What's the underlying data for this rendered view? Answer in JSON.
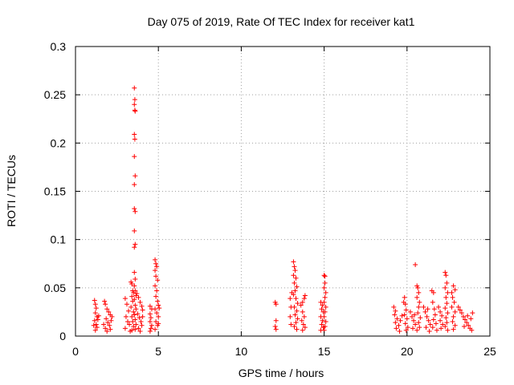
{
  "chart_data": {
    "type": "scatter",
    "title": "Day 075 of 2019, Rate Of TEC Index for receiver kat1",
    "xlabel": "GPS time / hours",
    "ylabel": "ROTI / TECUs",
    "xlim": [
      0,
      25
    ],
    "ylim": [
      0,
      0.3
    ],
    "x_ticks": [
      0,
      5,
      10,
      15,
      20,
      25
    ],
    "x_tick_labels": [
      "0",
      "5",
      "10",
      "15",
      "20",
      "25"
    ],
    "y_ticks": [
      0,
      0.05,
      0.1,
      0.15,
      0.2,
      0.25,
      0.3
    ],
    "y_tick_labels": [
      "0",
      "0.05",
      "0.1",
      "0.15",
      "0.2",
      "0.25",
      "0.3"
    ],
    "grid": true,
    "marker": "plus",
    "color": "#ff0000",
    "series": [
      {
        "name": "ROTI",
        "points": [
          [
            1.15,
            0.037
          ],
          [
            1.2,
            0.033
          ],
          [
            1.25,
            0.029
          ],
          [
            1.2,
            0.024
          ],
          [
            1.3,
            0.02
          ],
          [
            1.15,
            0.016
          ],
          [
            1.25,
            0.012
          ],
          [
            1.3,
            0.009
          ],
          [
            1.2,
            0.006
          ],
          [
            1.35,
            0.017
          ],
          [
            1.1,
            0.011
          ],
          [
            1.4,
            0.021
          ],
          [
            1.75,
            0.036
          ],
          [
            1.8,
            0.033
          ],
          [
            1.9,
            0.028
          ],
          [
            2.0,
            0.025
          ],
          [
            2.1,
            0.022
          ],
          [
            1.85,
            0.018
          ],
          [
            1.95,
            0.014
          ],
          [
            2.05,
            0.011
          ],
          [
            1.8,
            0.008
          ],
          [
            2.15,
            0.016
          ],
          [
            1.7,
            0.012
          ],
          [
            2.2,
            0.02
          ],
          [
            1.9,
            0.005
          ],
          [
            2.1,
            0.007
          ],
          [
            3.0,
            0.039
          ],
          [
            3.1,
            0.033
          ],
          [
            3.2,
            0.026
          ],
          [
            3.05,
            0.02
          ],
          [
            3.15,
            0.015
          ],
          [
            3.25,
            0.012
          ],
          [
            3.0,
            0.008
          ],
          [
            3.3,
            0.005
          ],
          [
            3.35,
            0.056
          ],
          [
            3.4,
            0.054
          ],
          [
            3.45,
            0.047
          ],
          [
            3.5,
            0.045
          ],
          [
            3.4,
            0.041
          ],
          [
            3.45,
            0.036
          ],
          [
            3.35,
            0.03
          ],
          [
            3.5,
            0.025
          ],
          [
            3.4,
            0.02
          ],
          [
            3.45,
            0.015
          ],
          [
            3.5,
            0.01
          ],
          [
            3.4,
            0.006
          ],
          [
            3.55,
            0.257
          ],
          [
            3.58,
            0.245
          ],
          [
            3.55,
            0.24
          ],
          [
            3.58,
            0.234
          ],
          [
            3.6,
            0.233
          ],
          [
            3.55,
            0.209
          ],
          [
            3.58,
            0.204
          ],
          [
            3.55,
            0.186
          ],
          [
            3.6,
            0.166
          ],
          [
            3.55,
            0.157
          ],
          [
            3.55,
            0.132
          ],
          [
            3.6,
            0.129
          ],
          [
            3.55,
            0.109
          ],
          [
            3.6,
            0.095
          ],
          [
            3.55,
            0.092
          ],
          [
            3.55,
            0.066
          ],
          [
            3.6,
            0.059
          ],
          [
            3.55,
            0.052
          ],
          [
            3.6,
            0.047
          ],
          [
            3.65,
            0.042
          ],
          [
            3.55,
            0.038
          ],
          [
            3.6,
            0.032
          ],
          [
            3.65,
            0.028
          ],
          [
            3.55,
            0.022
          ],
          [
            3.6,
            0.017
          ],
          [
            3.65,
            0.012
          ],
          [
            3.6,
            0.007
          ],
          [
            3.7,
            0.044
          ],
          [
            3.8,
            0.04
          ],
          [
            3.9,
            0.035
          ],
          [
            4.0,
            0.031
          ],
          [
            4.05,
            0.027
          ],
          [
            3.75,
            0.023
          ],
          [
            3.85,
            0.019
          ],
          [
            3.95,
            0.015
          ],
          [
            4.0,
            0.011
          ],
          [
            3.8,
            0.008
          ],
          [
            3.9,
            0.005
          ],
          [
            4.05,
            0.02
          ],
          [
            4.5,
            0.031
          ],
          [
            4.6,
            0.028
          ],
          [
            4.5,
            0.023
          ],
          [
            4.55,
            0.019
          ],
          [
            4.5,
            0.015
          ],
          [
            4.6,
            0.011
          ],
          [
            4.55,
            0.008
          ],
          [
            4.5,
            0.005
          ],
          [
            4.8,
            0.079
          ],
          [
            4.85,
            0.075
          ],
          [
            4.9,
            0.072
          ],
          [
            4.8,
            0.068
          ],
          [
            4.85,
            0.062
          ],
          [
            4.95,
            0.058
          ],
          [
            4.8,
            0.052
          ],
          [
            4.9,
            0.047
          ],
          [
            4.85,
            0.041
          ],
          [
            4.95,
            0.036
          ],
          [
            5.0,
            0.032
          ],
          [
            4.8,
            0.028
          ],
          [
            4.9,
            0.024
          ],
          [
            5.0,
            0.02
          ],
          [
            4.85,
            0.015
          ],
          [
            4.95,
            0.011
          ],
          [
            4.8,
            0.007
          ],
          [
            5.05,
            0.029
          ],
          [
            5.0,
            0.013
          ],
          [
            12.05,
            0.035
          ],
          [
            12.1,
            0.033
          ],
          [
            12.1,
            0.016
          ],
          [
            12.05,
            0.01
          ],
          [
            12.1,
            0.007
          ],
          [
            12.95,
            0.039
          ],
          [
            13.0,
            0.03
          ],
          [
            12.95,
            0.02
          ],
          [
            13.0,
            0.012
          ],
          [
            13.05,
            0.045
          ],
          [
            13.15,
            0.077
          ],
          [
            13.2,
            0.072
          ],
          [
            13.25,
            0.068
          ],
          [
            13.15,
            0.063
          ],
          [
            13.3,
            0.06
          ],
          [
            13.2,
            0.055
          ],
          [
            13.35,
            0.051
          ],
          [
            13.25,
            0.047
          ],
          [
            13.15,
            0.043
          ],
          [
            13.3,
            0.039
          ],
          [
            13.4,
            0.034
          ],
          [
            13.2,
            0.03
          ],
          [
            13.35,
            0.026
          ],
          [
            13.25,
            0.022
          ],
          [
            13.4,
            0.018
          ],
          [
            13.3,
            0.014
          ],
          [
            13.2,
            0.01
          ],
          [
            13.35,
            0.007
          ],
          [
            13.6,
            0.032
          ],
          [
            13.7,
            0.035
          ],
          [
            13.8,
            0.039
          ],
          [
            13.85,
            0.042
          ],
          [
            13.7,
            0.025
          ],
          [
            13.8,
            0.02
          ],
          [
            13.65,
            0.016
          ],
          [
            13.75,
            0.012
          ],
          [
            13.85,
            0.009
          ],
          [
            13.7,
            0.006
          ],
          [
            14.8,
            0.035
          ],
          [
            14.9,
            0.032
          ],
          [
            14.85,
            0.028
          ],
          [
            14.95,
            0.025
          ],
          [
            14.8,
            0.02
          ],
          [
            14.9,
            0.016
          ],
          [
            14.85,
            0.012
          ],
          [
            14.95,
            0.009
          ],
          [
            14.8,
            0.006
          ],
          [
            15.0,
            0.063
          ],
          [
            15.05,
            0.062
          ],
          [
            15.05,
            0.055
          ],
          [
            15.0,
            0.05
          ],
          [
            15.1,
            0.045
          ],
          [
            15.05,
            0.04
          ],
          [
            15.0,
            0.035
          ],
          [
            15.1,
            0.03
          ],
          [
            15.05,
            0.025
          ],
          [
            15.0,
            0.02
          ],
          [
            15.1,
            0.015
          ],
          [
            15.05,
            0.01
          ],
          [
            15.0,
            0.006
          ],
          [
            19.2,
            0.03
          ],
          [
            19.3,
            0.026
          ],
          [
            19.25,
            0.022
          ],
          [
            19.4,
            0.018
          ],
          [
            19.3,
            0.014
          ],
          [
            19.5,
            0.011
          ],
          [
            19.35,
            0.008
          ],
          [
            19.6,
            0.016
          ],
          [
            19.7,
            0.021
          ],
          [
            19.55,
            0.005
          ],
          [
            19.8,
            0.035
          ],
          [
            19.85,
            0.04
          ],
          [
            19.9,
            0.033
          ],
          [
            19.95,
            0.027
          ],
          [
            19.85,
            0.022
          ],
          [
            20.0,
            0.018
          ],
          [
            19.9,
            0.013
          ],
          [
            20.05,
            0.009
          ],
          [
            19.95,
            0.006
          ],
          [
            20.2,
            0.025
          ],
          [
            20.3,
            0.02
          ],
          [
            20.4,
            0.016
          ],
          [
            20.5,
            0.012
          ],
          [
            20.35,
            0.008
          ],
          [
            20.45,
            0.022
          ],
          [
            20.5,
            0.074
          ],
          [
            20.6,
            0.052
          ],
          [
            20.65,
            0.05
          ],
          [
            20.7,
            0.045
          ],
          [
            20.6,
            0.04
          ],
          [
            20.75,
            0.035
          ],
          [
            20.7,
            0.03
          ],
          [
            20.65,
            0.024
          ],
          [
            20.8,
            0.019
          ],
          [
            20.7,
            0.014
          ],
          [
            20.75,
            0.009
          ],
          [
            20.6,
            0.006
          ],
          [
            21.0,
            0.03
          ],
          [
            21.1,
            0.025
          ],
          [
            21.2,
            0.02
          ],
          [
            21.3,
            0.016
          ],
          [
            21.4,
            0.012
          ],
          [
            21.15,
            0.009
          ],
          [
            21.35,
            0.005
          ],
          [
            21.25,
            0.028
          ],
          [
            21.5,
            0.047
          ],
          [
            21.6,
            0.045
          ],
          [
            21.55,
            0.035
          ],
          [
            21.65,
            0.028
          ],
          [
            21.7,
            0.022
          ],
          [
            21.6,
            0.017
          ],
          [
            21.75,
            0.013
          ],
          [
            21.55,
            0.009
          ],
          [
            21.8,
            0.006
          ],
          [
            21.9,
            0.03
          ],
          [
            22.0,
            0.025
          ],
          [
            22.1,
            0.021
          ],
          [
            22.0,
            0.016
          ],
          [
            22.15,
            0.012
          ],
          [
            22.05,
            0.008
          ],
          [
            22.3,
            0.066
          ],
          [
            22.35,
            0.063
          ],
          [
            22.4,
            0.055
          ],
          [
            22.3,
            0.05
          ],
          [
            22.45,
            0.045
          ],
          [
            22.35,
            0.04
          ],
          [
            22.4,
            0.034
          ],
          [
            22.3,
            0.029
          ],
          [
            22.45,
            0.024
          ],
          [
            22.35,
            0.019
          ],
          [
            22.4,
            0.014
          ],
          [
            22.3,
            0.01
          ],
          [
            22.45,
            0.006
          ],
          [
            22.7,
            0.045
          ],
          [
            22.8,
            0.052
          ],
          [
            22.9,
            0.048
          ],
          [
            22.75,
            0.04
          ],
          [
            22.85,
            0.035
          ],
          [
            22.7,
            0.03
          ],
          [
            22.9,
            0.025
          ],
          [
            22.8,
            0.02
          ],
          [
            22.75,
            0.015
          ],
          [
            22.9,
            0.011
          ],
          [
            22.8,
            0.007
          ],
          [
            23.1,
            0.03
          ],
          [
            23.2,
            0.027
          ],
          [
            23.3,
            0.024
          ],
          [
            23.4,
            0.02
          ],
          [
            23.5,
            0.017
          ],
          [
            23.6,
            0.014
          ],
          [
            23.7,
            0.011
          ],
          [
            23.8,
            0.008
          ],
          [
            23.9,
            0.006
          ],
          [
            23.95,
            0.024
          ],
          [
            23.85,
            0.018
          ],
          [
            23.45,
            0.01
          ],
          [
            23.65,
            0.021
          ]
        ]
      }
    ]
  }
}
